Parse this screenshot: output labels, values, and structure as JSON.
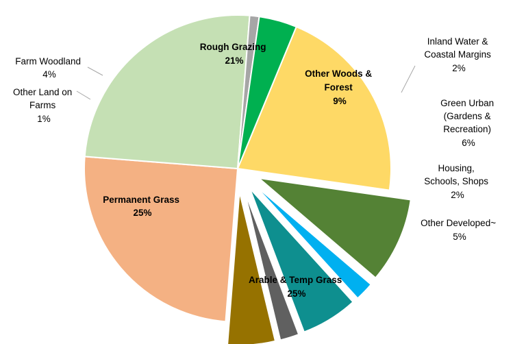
{
  "chart_data": {
    "type": "pie",
    "title": "",
    "slices": [
      {
        "name": "Rough Grazing",
        "value": 21,
        "label": "21%",
        "color": "#FED966"
      },
      {
        "name": "Other Woods & Forest",
        "value": 9,
        "label": "9%",
        "color": "#548235",
        "exploded": true
      },
      {
        "name": "Inland Water & Coastal Margins",
        "value": 2,
        "label": "2%",
        "color": "#00B0F0",
        "exploded": true
      },
      {
        "name": "Green Urban (Gardens & Recreation)",
        "value": 6,
        "label": "6%",
        "color": "#0E8F8F",
        "exploded": true
      },
      {
        "name": "Housing, Schools, Shops",
        "value": 2,
        "label": "2%",
        "color": "#606060",
        "exploded": true
      },
      {
        "name": "Other Developed~",
        "value": 5,
        "label": "5%",
        "color": "#967200",
        "exploded": true
      },
      {
        "name": "Arable & Temp Grass",
        "value": 25,
        "label": "25%",
        "color": "#F4B183"
      },
      {
        "name": "Permanent Grass",
        "value": 25,
        "label": "25%",
        "color": "#C5E0B4"
      },
      {
        "name": "Other Land on Farms",
        "value": 1,
        "label": "1%",
        "color": "#A6A6A6"
      },
      {
        "name": "Farm Woodland",
        "value": 4,
        "label": "4%",
        "color": "#00B050"
      }
    ],
    "legend": "none",
    "labels": {
      "rough_grazing": [
        "Rough Grazing",
        "21%"
      ],
      "other_woods": [
        "Other Woods &",
        "Forest",
        "9%"
      ],
      "inland_water": [
        "Inland Water &",
        "Coastal Margins",
        "2%"
      ],
      "green_urban": [
        "Green Urban",
        "(Gardens &",
        "Recreation)",
        "6%"
      ],
      "housing": [
        "Housing,",
        "Schools, Shops",
        "2%"
      ],
      "other_developed": [
        "Other Developed~",
        "5%"
      ],
      "arable": [
        "Arable & Temp Grass",
        "25%"
      ],
      "permanent_grass": [
        "Permanent Grass",
        "25%"
      ],
      "other_land_farms": [
        "Other Land on",
        "Farms",
        "1%"
      ],
      "farm_woodland": [
        "Farm Woodland",
        "4%"
      ]
    }
  }
}
